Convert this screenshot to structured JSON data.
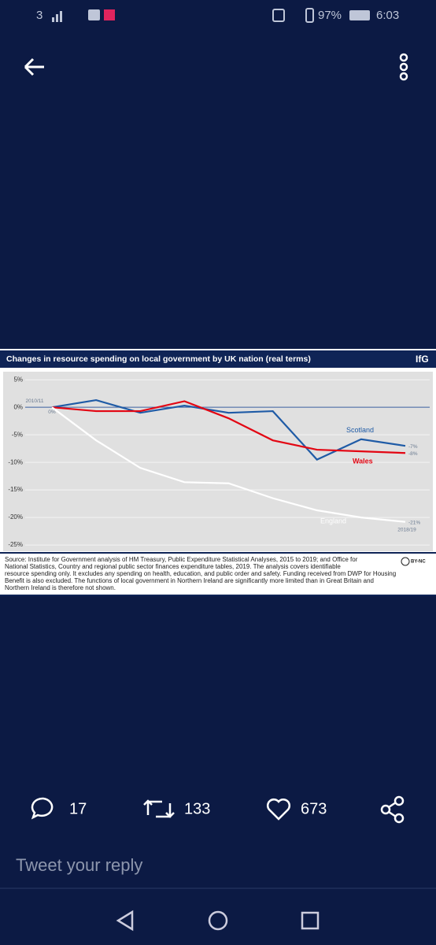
{
  "status_bar": {
    "carrier": "3",
    "battery": "97%",
    "time": "6:03"
  },
  "chart_data": {
    "type": "line",
    "title": "Changes in resource spending on local government by UK nation (real terms)",
    "logo": "IfG",
    "categories": [
      "2010/11",
      null,
      null,
      null,
      null,
      null,
      null,
      null,
      "2018/19"
    ],
    "series": [
      {
        "name": "Scotland",
        "color": "#1f5ba6",
        "values": [
          0,
          1.3,
          -1,
          0.3,
          -1,
          -0.7,
          -9.5,
          -5.8,
          -7
        ],
        "value_labels": [
          null,
          null,
          null,
          null,
          null,
          null,
          null,
          null,
          "-7%"
        ]
      },
      {
        "name": "Wales",
        "color": "#e30613",
        "values": [
          0,
          -0.7,
          -0.7,
          1.1,
          -2,
          -6,
          -7.7,
          -8,
          -8.3
        ],
        "value_labels": [
          null,
          null,
          null,
          null,
          null,
          null,
          null,
          null,
          "-8%"
        ]
      },
      {
        "name": "England",
        "color": "#ffffff",
        "values": [
          0,
          -6,
          -11,
          -13.6,
          -13.8,
          -16.5,
          -18.7,
          -20,
          -20.8
        ],
        "value_labels": [
          "0%",
          null,
          null,
          null,
          null,
          null,
          null,
          null,
          "-21%"
        ]
      }
    ],
    "ylim": [
      -25.7,
      5.6
    ],
    "yticks": [
      {
        "value": 5,
        "label": "5%"
      },
      {
        "value": 0,
        "label": "0%"
      },
      {
        "value": -5,
        "label": "-5%"
      },
      {
        "value": -10,
        "label": "-10%"
      },
      {
        "value": -15,
        "label": "-15%"
      },
      {
        "value": -20,
        "label": "-20%"
      },
      {
        "value": -25,
        "label": "-25%"
      }
    ],
    "grid": true,
    "source": [
      "Source: Institute for Government analysis of HM Treasury, Public Expenditure Statistical Analyses, 2015 to 2019; and Office for",
      "National Statistics, Country and regional public sector finances expenditure tables, 2019. The analysis covers identifiable",
      "resource spending only. It excludes any spending on health, education, and public order and safety. Funding received from DWP for Housing",
      "Benefit is also excluded. The functions of local government in Northern Ireland are significantly more limited than in Great Britain and",
      "Northern Ireland is therefore not shown."
    ],
    "license": "BY-NC"
  },
  "actions": {
    "replies": "17",
    "retweets": "133",
    "likes": "673"
  },
  "reply_placeholder": "Tweet your reply"
}
